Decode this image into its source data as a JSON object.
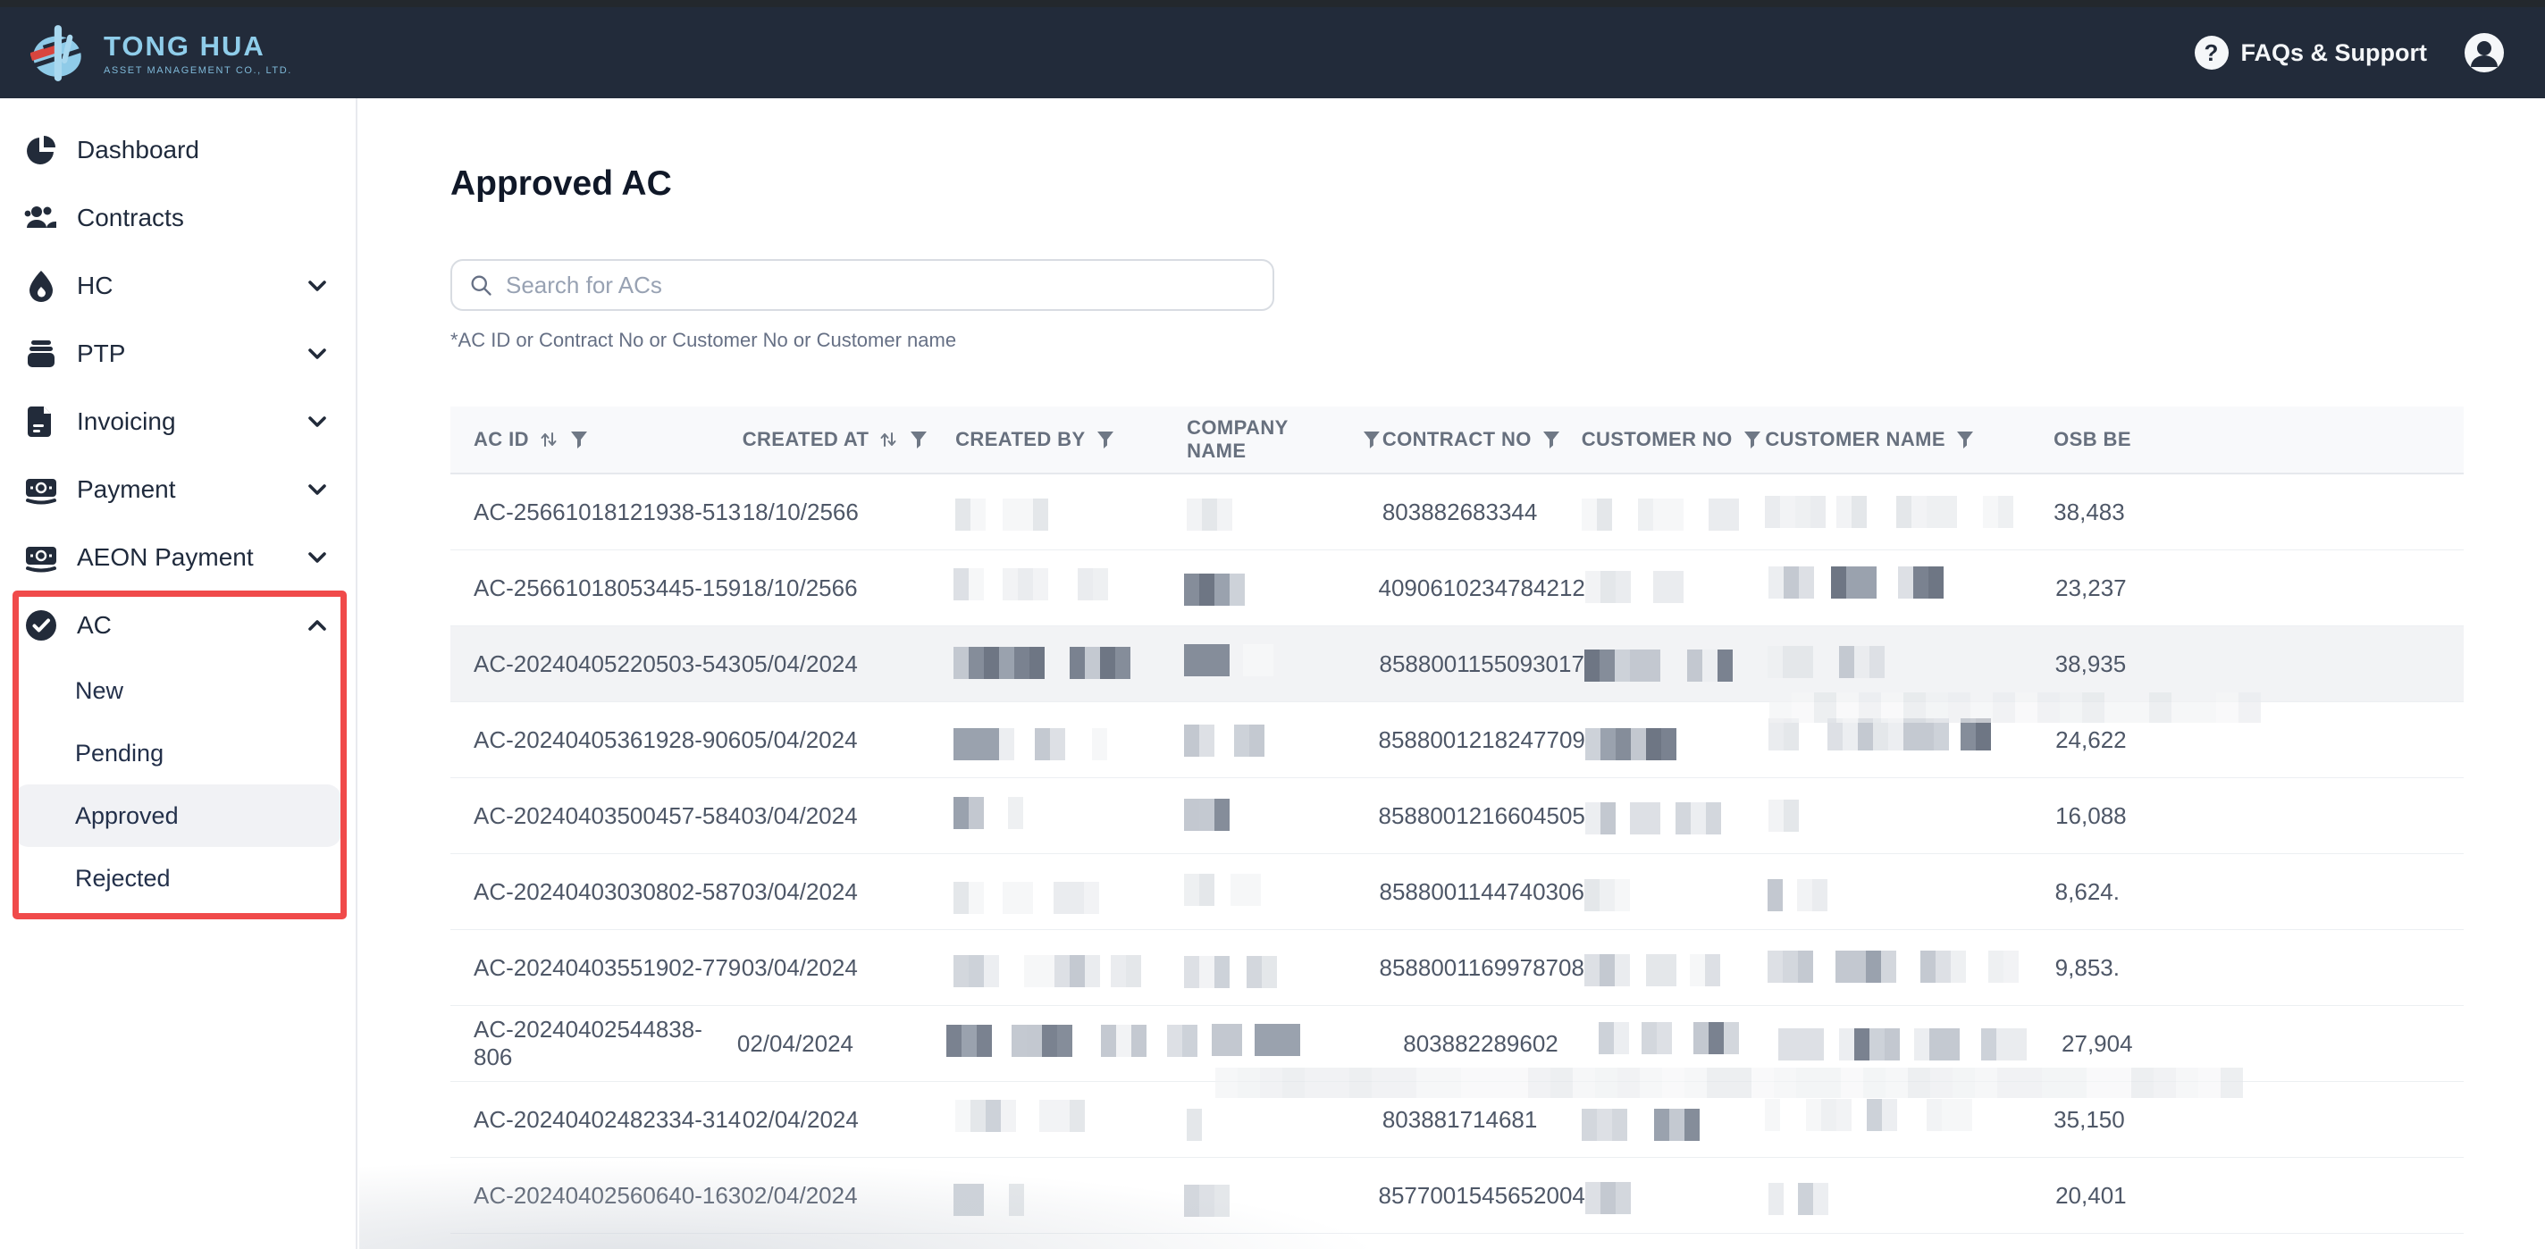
{
  "topbar": {
    "brand": "TONG HUA",
    "brand_sub": "ASSET MANAGEMENT CO., LTD.",
    "support_label": "FAQs & Support"
  },
  "sidebar": {
    "items": [
      {
        "label": "Dashboard",
        "icon": "dashboard",
        "chevron": null
      },
      {
        "label": "Contracts",
        "icon": "contracts",
        "chevron": null
      },
      {
        "label": "HC",
        "icon": "hc",
        "chevron": "down"
      },
      {
        "label": "PTP",
        "icon": "ptp",
        "chevron": "down"
      },
      {
        "label": "Invoicing",
        "icon": "invoicing",
        "chevron": "down"
      },
      {
        "label": "Payment",
        "icon": "payment",
        "chevron": "down"
      },
      {
        "label": "AEON Payment",
        "icon": "aeon-payment",
        "chevron": "down"
      },
      {
        "label": "AC",
        "icon": "ac",
        "chevron": "up"
      }
    ],
    "ac_children": [
      {
        "label": "New",
        "active": false
      },
      {
        "label": "Pending",
        "active": false
      },
      {
        "label": "Approved",
        "active": true
      },
      {
        "label": "Rejected",
        "active": false
      }
    ]
  },
  "page": {
    "title": "Approved AC",
    "search_placeholder": "Search for ACs",
    "search_hint": "*AC ID or Contract No or Customer No or Customer name"
  },
  "table": {
    "columns": [
      {
        "label": "AC ID",
        "sortable": true,
        "filterable": true
      },
      {
        "label": "CREATED AT",
        "sortable": true,
        "filterable": true
      },
      {
        "label": "CREATED BY",
        "sortable": false,
        "filterable": true
      },
      {
        "label": "COMPANY NAME",
        "sortable": false,
        "filterable": true
      },
      {
        "label": "CONTRACT NO",
        "sortable": false,
        "filterable": true
      },
      {
        "label": "CUSTOMER NO",
        "sortable": false,
        "filterable": true
      },
      {
        "label": "CUSTOMER NAME",
        "sortable": false,
        "filterable": true
      },
      {
        "label": "OSB BE",
        "sortable": false,
        "filterable": false
      }
    ],
    "rows": [
      {
        "ac_id": "AC-25661018121938-513",
        "created_at": "18/10/2566",
        "contract_no": "803882683344",
        "osb": "38,483",
        "highlighted": false,
        "created_by": [
          [
            2,
            0
          ],
          [
            3,
            0
          ]
        ],
        "company_name": [
          [
            3,
            0
          ]
        ],
        "customer_no": [
          [
            2,
            0
          ],
          [
            3,
            0
          ],
          [
            2,
            0
          ]
        ],
        "customer_name": [
          [
            4,
            0
          ],
          [
            2,
            0
          ],
          [
            4,
            0
          ],
          [
            2,
            0
          ]
        ]
      },
      {
        "ac_id": "AC-25661018053445-159",
        "created_at": "18/10/2566",
        "contract_no": "4090610234784212",
        "osb": "23,237",
        "highlighted": false,
        "created_by": [
          [
            2,
            1
          ],
          [
            3,
            0
          ],
          [
            2,
            0
          ]
        ],
        "company_name": [
          [
            4,
            2
          ]
        ],
        "customer_no": [
          [
            3,
            0
          ],
          [
            2,
            0
          ]
        ],
        "customer_name": [
          [
            3,
            1
          ],
          [
            3,
            2
          ],
          [
            3,
            2
          ]
        ]
      },
      {
        "ac_id": "AC-20240405220503-543",
        "created_at": "05/04/2024",
        "contract_no": "8588001155093017",
        "osb": "38,935",
        "highlighted": true,
        "created_by": [
          [
            6,
            2
          ],
          [
            4,
            2
          ]
        ],
        "company_name": [
          [
            3,
            2
          ],
          [
            2,
            1
          ]
        ],
        "customer_no": [
          [
            5,
            2
          ],
          [
            3,
            2
          ]
        ],
        "customer_name": [
          [
            3,
            0
          ],
          [
            3,
            1
          ]
        ]
      },
      {
        "ac_id": "AC-20240405361928-906",
        "created_at": "05/04/2024",
        "contract_no": "8588001218247709",
        "osb": "24,622",
        "highlighted": false,
        "created_by": [
          [
            4,
            2
          ],
          [
            2,
            1
          ],
          [
            1,
            0
          ]
        ],
        "company_name": [
          [
            2,
            2
          ],
          [
            2,
            1
          ]
        ],
        "customer_no": [
          [
            6,
            2
          ]
        ],
        "customer_name": [
          [
            2,
            0
          ],
          [
            8,
            1
          ],
          [
            2,
            2
          ]
        ]
      },
      {
        "ac_id": "AC-20240403500457-584",
        "created_at": "03/04/2024",
        "contract_no": "8588001216604505",
        "osb": "16,088",
        "highlighted": false,
        "created_by": [
          [
            2,
            2
          ],
          [
            1,
            0
          ]
        ],
        "company_name": [
          [
            3,
            2
          ]
        ],
        "customer_no": [
          [
            2,
            2
          ],
          [
            2,
            1
          ],
          [
            3,
            1
          ]
        ],
        "customer_name": [
          [
            2,
            0
          ]
        ]
      },
      {
        "ac_id": "AC-20240403030802-587",
        "created_at": "03/04/2024",
        "contract_no": "8588001144740306",
        "osb": "8,624.",
        "highlighted": false,
        "created_by": [
          [
            2,
            0
          ],
          [
            2,
            0
          ],
          [
            3,
            0
          ]
        ],
        "company_name": [
          [
            2,
            0
          ],
          [
            2,
            0
          ]
        ],
        "customer_no": [
          [
            3,
            0
          ]
        ],
        "customer_name": [
          [
            1,
            2
          ],
          [
            2,
            0
          ]
        ]
      },
      {
        "ac_id": "AC-20240403551902-779",
        "created_at": "03/04/2024",
        "contract_no": "8588001169978708",
        "osb": "9,853.",
        "highlighted": false,
        "created_by": [
          [
            3,
            1
          ],
          [
            5,
            1
          ],
          [
            2,
            0
          ]
        ],
        "company_name": [
          [
            3,
            1
          ],
          [
            2,
            1
          ]
        ],
        "customer_no": [
          [
            3,
            1
          ],
          [
            2,
            0
          ],
          [
            2,
            1
          ]
        ],
        "customer_name": [
          [
            3,
            1
          ],
          [
            4,
            2
          ],
          [
            3,
            1
          ],
          [
            2,
            0
          ]
        ]
      },
      {
        "ac_id": "AC-20240402544838-806",
        "created_at": "02/04/2024",
        "contract_no": "803882289602",
        "osb": "27,904",
        "highlighted": false,
        "created_by": [
          [
            3,
            2
          ],
          [
            4,
            2
          ],
          [
            3,
            1
          ],
          [
            2,
            1
          ]
        ],
        "company_name": [
          [
            2,
            2
          ],
          [
            3,
            2
          ]
        ],
        "customer_no": [
          [
            2,
            1
          ],
          [
            2,
            1
          ],
          [
            3,
            2
          ]
        ],
        "customer_name": [
          [
            3,
            1
          ],
          [
            4,
            2
          ],
          [
            3,
            1
          ],
          [
            3,
            1
          ]
        ]
      },
      {
        "ac_id": "AC-20240402482334-314",
        "created_at": "02/04/2024",
        "contract_no": "803881714681",
        "osb": "35,150",
        "highlighted": false,
        "created_by": [
          [
            4,
            1
          ],
          [
            3,
            0
          ]
        ],
        "company_name": [
          [
            1,
            0
          ]
        ],
        "customer_no": [
          [
            3,
            1
          ],
          [
            3,
            2
          ]
        ],
        "customer_name": [
          [
            1,
            0
          ],
          [
            3,
            0
          ],
          [
            2,
            1
          ],
          [
            3,
            0
          ]
        ]
      },
      {
        "ac_id": "AC-20240402560640-163",
        "created_at": "02/04/2024",
        "contract_no": "8577001545652004",
        "osb": "20,401",
        "highlighted": false,
        "created_by": [
          [
            2,
            1
          ],
          [
            1,
            0
          ]
        ],
        "company_name": [
          [
            3,
            1
          ]
        ],
        "customer_no": [
          [
            3,
            1
          ]
        ],
        "customer_name": [
          [
            1,
            0
          ],
          [
            2,
            1
          ]
        ]
      }
    ]
  },
  "colors": {
    "topbar_bg": "#222B3A",
    "brand_blue": "#8FCDEA",
    "brand_red": "#D8453E",
    "annotation_red": "#F04A4A",
    "nav_text": "#1F2A3C",
    "header_text": "#67707E",
    "cell_text": "#4E5767",
    "row_highlight": "#F2F3F5",
    "header_bg": "#F8F9FB"
  }
}
